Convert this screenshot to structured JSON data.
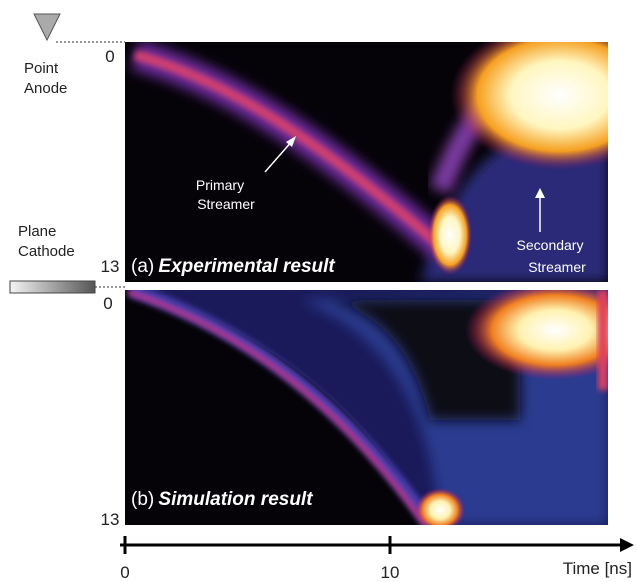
{
  "figure": {
    "anode_label": [
      "Point",
      "Anode"
    ],
    "cathode_label": [
      "Plane",
      "Cathode"
    ],
    "panel_a": {
      "tag": "(a)",
      "title": "Experimental result",
      "y_top": 0,
      "y_bottom": 13,
      "annotations": [
        [
          "Primary",
          "Streamer"
        ],
        [
          "Secondary",
          "Streamer"
        ]
      ]
    },
    "panel_b": {
      "tag": "(b)",
      "title": "Simulation result",
      "y_top": 0,
      "y_bottom": 13
    },
    "time_axis": {
      "ticks": [
        0,
        10
      ],
      "label": "Time [ns]"
    }
  }
}
